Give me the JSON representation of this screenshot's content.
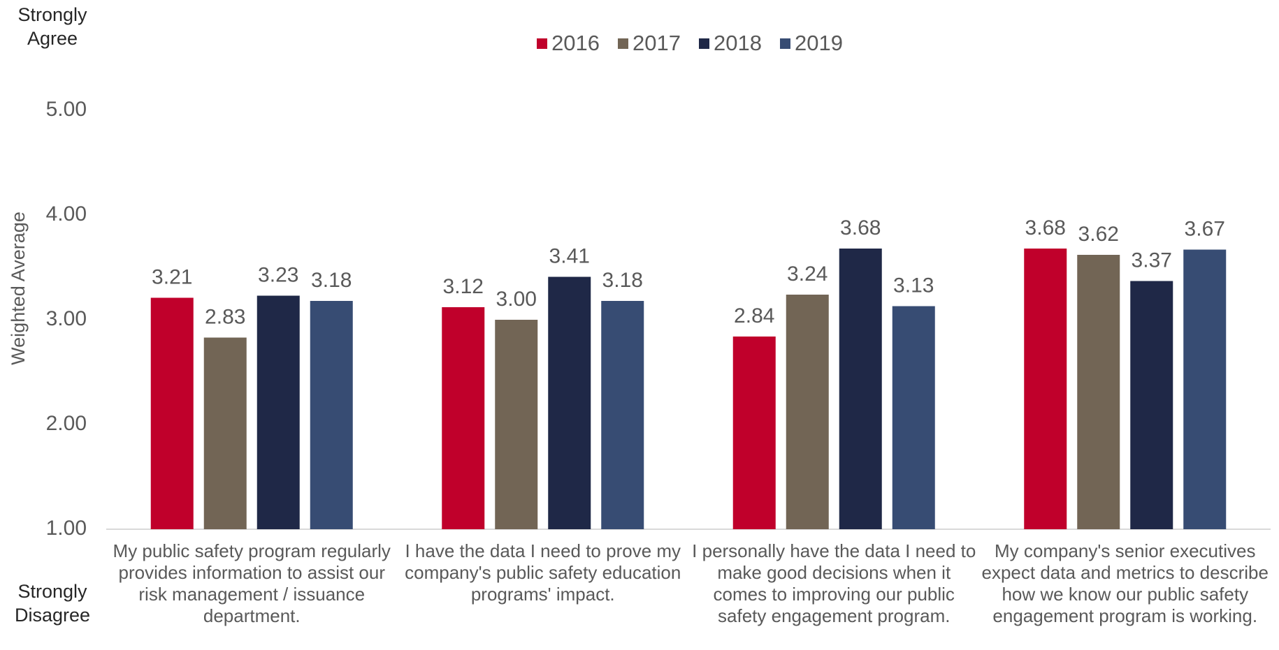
{
  "chart_data": {
    "type": "bar",
    "y_axis_label": "Weighted Average",
    "annotations": [
      "Strongly Agree",
      "Strongly Disagree"
    ],
    "categories": [
      "My public safety program regularly provides information to assist our risk management / issuance department.",
      "I have the data I need to prove my company's public safety education programs' impact.",
      "I personally have the data I need to make good decisions when it comes to improving our public safety engagement program.",
      "My company's senior executives expect data and metrics to describe how we know our public safety engagement program is working."
    ],
    "series": [
      {
        "name": "2016",
        "color": "#c0002b",
        "values": [
          3.21,
          3.12,
          2.84,
          3.68
        ],
        "value_labels": [
          "3.21",
          "3.12",
          "2.84",
          "3.68"
        ]
      },
      {
        "name": "2017",
        "color": "#726555",
        "values": [
          2.83,
          3.0,
          3.24,
          3.62
        ],
        "value_labels": [
          "2.83",
          "3.00",
          "3.24",
          "3.62"
        ]
      },
      {
        "name": "2018",
        "color": "#1f2847",
        "values": [
          3.23,
          3.41,
          3.68,
          3.37
        ],
        "value_labels": [
          "3.23",
          "3.41",
          "3.68",
          "3.37"
        ]
      },
      {
        "name": "2019",
        "color": "#374c73",
        "values": [
          3.18,
          3.18,
          3.13,
          3.67
        ],
        "value_labels": [
          "3.18",
          "3.18",
          "3.13",
          "3.67"
        ]
      }
    ],
    "ylim": [
      1,
      5
    ],
    "yticks": [
      {
        "value": 1,
        "label": "1.00"
      },
      {
        "value": 2,
        "label": "2.00"
      },
      {
        "value": 3,
        "label": "3.00"
      },
      {
        "value": 4,
        "label": "4.00"
      },
      {
        "value": 5,
        "label": "5.00"
      }
    ],
    "grid": false,
    "legend": "top"
  }
}
